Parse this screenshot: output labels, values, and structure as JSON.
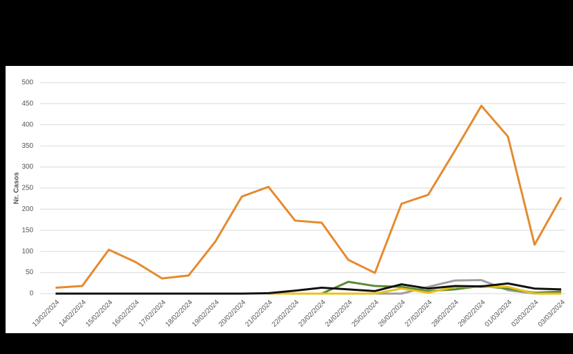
{
  "chart_data": {
    "type": "line",
    "y_label": "Nr. Casos",
    "categories": [
      "13/02/2024",
      "14/02/2024",
      "15/02/2024",
      "16/02/2024",
      "17/02/2024",
      "18/02/2024",
      "19/02/2024",
      "20/02/2024",
      "21/02/2024",
      "22/02/2024",
      "23/02/2024",
      "24/02/2024",
      "25/02/2024",
      "26/02/2024",
      "27/02/2024",
      "28/02/2024",
      "29/02/2024",
      "01/03/2024",
      "02/03/2024",
      "03/03/2024"
    ],
    "series": [
      {
        "color": "#9e9e9e",
        "values": [
          null,
          null,
          null,
          null,
          null,
          null,
          null,
          null,
          null,
          null,
          null,
          null,
          0,
          0,
          16,
          31,
          32,
          8,
          0,
          2
        ]
      },
      {
        "color": "#5b8a32",
        "values": [
          null,
          null,
          null,
          null,
          null,
          null,
          null,
          null,
          null,
          null,
          0,
          28,
          18,
          16,
          6,
          10,
          18,
          12,
          2,
          5
        ]
      },
      {
        "color": "#e8c21a",
        "values": [
          null,
          null,
          null,
          null,
          null,
          null,
          null,
          null,
          0,
          0,
          0,
          0,
          0,
          12,
          2,
          16,
          16,
          16,
          0,
          0
        ]
      },
      {
        "color": "#e58a2e",
        "values": [
          14,
          18,
          104,
          75,
          36,
          43,
          123,
          230,
          253,
          173,
          168,
          80,
          49,
          213,
          234,
          338,
          445,
          372,
          116,
          228
        ]
      },
      {
        "color": "#111111",
        "values": [
          0,
          0,
          0,
          0,
          0,
          0,
          0,
          0,
          1,
          7,
          14,
          10,
          6,
          22,
          12,
          18,
          17,
          24,
          12,
          10
        ]
      }
    ],
    "ylim": [
      0,
      500
    ],
    "yticks": [
      0,
      50,
      100,
      150,
      200,
      250,
      300,
      350,
      400,
      450,
      500
    ],
    "grid": true
  }
}
